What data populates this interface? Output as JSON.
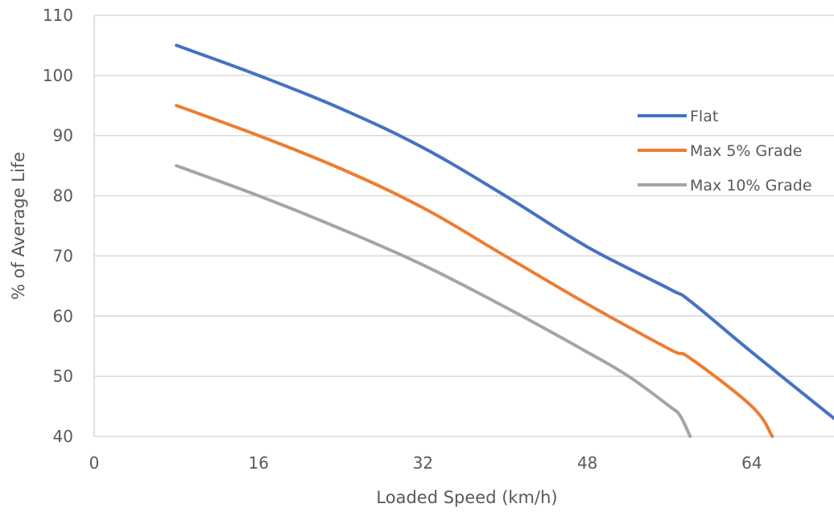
{
  "chart_data": {
    "type": "line",
    "title": "",
    "xlabel": "Loaded Speed (km/h)",
    "ylabel": "% of Average Life",
    "xlim": [
      0,
      72
    ],
    "ylim": [
      40,
      110
    ],
    "xticks": [
      0,
      16,
      32,
      48,
      64
    ],
    "yticks": [
      40,
      50,
      60,
      70,
      80,
      90,
      100,
      110
    ],
    "grid": "horizontal",
    "legend_position": "right",
    "series": [
      {
        "name": "Flat",
        "color": "#4472c4",
        "x": [
          8,
          16,
          24,
          32,
          40,
          48,
          56,
          58,
          64,
          72
        ],
        "y": [
          105,
          100,
          94.5,
          88,
          80,
          71.5,
          64.5,
          62.5,
          54,
          43
        ]
      },
      {
        "name": "Max 5% Grade",
        "color": "#ed7d31",
        "x": [
          8,
          16,
          24,
          32,
          40,
          48,
          56,
          58,
          64,
          66
        ],
        "y": [
          95,
          90,
          84.5,
          78,
          70,
          62,
          54.5,
          53,
          45,
          40
        ]
      },
      {
        "name": "Max 10% Grade",
        "color": "#a5a5a5",
        "x": [
          8,
          16,
          24,
          32,
          40,
          48,
          52,
          56,
          57,
          58
        ],
        "y": [
          85,
          80,
          74.5,
          68.5,
          61.5,
          54,
          50,
          45,
          43.5,
          40
        ]
      }
    ]
  }
}
